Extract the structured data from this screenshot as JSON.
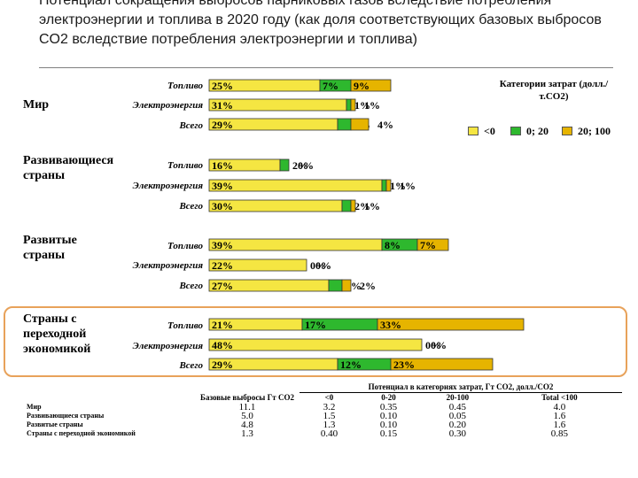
{
  "title": "Потенциал сокращения выбросов парниковых газов вследствие потребления электроэнергии и топлива в 2020 году (как доля соответствующих базовых выбросов CO2 вследствие потребления электроэнергии и топлива)",
  "regions": [
    {
      "name": "Мир",
      "rows": [
        "Топливо",
        "Электроэнергия",
        "Всего"
      ]
    },
    {
      "name": "Развивающиеся страны",
      "rows": [
        "Топливо",
        "Электроэнергия",
        "Всего"
      ]
    },
    {
      "name": "Развитые страны",
      "rows": [
        "Топливо",
        "Электроэнергия",
        "Всего"
      ]
    },
    {
      "name": "Страны с переходной экономикой",
      "rows": [
        "Топливо",
        "Электроэнергия",
        "Всего"
      ]
    }
  ],
  "legend": {
    "title": "Категории затрат (долл./т.CO2)",
    "items": [
      {
        "label": "<0",
        "color": "#f5e642"
      },
      {
        "label": "0; 20",
        "color": "#2eb82e"
      },
      {
        "label": "20; 100",
        "color": "#e6b400"
      }
    ]
  },
  "chart_data": {
    "type": "bar",
    "stacked": true,
    "orientation": "horizontal",
    "series_names": [
      "<0",
      "0; 20",
      "20; 100"
    ],
    "colors": {
      "<0": "#f5e642",
      "0; 20": "#2eb82e",
      "20; 100": "#e6b400"
    },
    "rows": [
      {
        "region": "Мир",
        "label": "Топливо",
        "values": [
          25,
          7,
          9
        ],
        "labels": [
          "25%",
          "7%",
          "9%"
        ]
      },
      {
        "region": "Мир",
        "label": "Электроэнергия",
        "values": [
          31,
          1,
          1
        ],
        "labels": [
          "31%",
          "1%",
          "1%"
        ]
      },
      {
        "region": "Мир",
        "label": "Всего",
        "values": [
          29,
          3,
          4
        ],
        "labels": [
          "29%",
          "3%",
          "4%"
        ]
      },
      {
        "region": "Развивающиеся страны",
        "label": "Топливо",
        "values": [
          16,
          2,
          0
        ],
        "labels": [
          "16%",
          "2%",
          "0%"
        ]
      },
      {
        "region": "Развивающиеся страны",
        "label": "Электроэнергия",
        "values": [
          39,
          1,
          1
        ],
        "labels": [
          "39%",
          "1%",
          "1%"
        ]
      },
      {
        "region": "Развивающиеся страны",
        "label": "Всего",
        "values": [
          30,
          2,
          1
        ],
        "labels": [
          "30%",
          "2%",
          "1%"
        ]
      },
      {
        "region": "Развитые страны",
        "label": "Топливо",
        "values": [
          39,
          8,
          7
        ],
        "labels": [
          "39%",
          "8%",
          "7%"
        ]
      },
      {
        "region": "Развитые страны",
        "label": "Электроэнергия",
        "values": [
          22,
          0,
          0
        ],
        "labels": [
          "22%",
          "0%",
          "0%"
        ]
      },
      {
        "region": "Развитые страны",
        "label": "Всего",
        "values": [
          27,
          3,
          2
        ],
        "labels": [
          "27%",
          "3%",
          "2%"
        ]
      },
      {
        "region": "Страны с переходной экономикой",
        "label": "Топливо",
        "values": [
          21,
          17,
          33
        ],
        "labels": [
          "21%",
          "17%",
          "33%"
        ]
      },
      {
        "region": "Страны с переходной экономикой",
        "label": "Электроэнергия",
        "values": [
          48,
          0,
          0
        ],
        "labels": [
          "48%",
          "0%",
          "0%"
        ]
      },
      {
        "region": "Страны с переходной экономикой",
        "label": "Всего",
        "values": [
          29,
          12,
          23
        ],
        "labels": [
          "29%",
          "12%",
          "23%"
        ]
      }
    ],
    "xlim": [
      0,
      85
    ]
  },
  "table": {
    "baseline_header": "Базовые выбросы Гт CO2",
    "potential_header": "Потенциал в категориях затрат, Гт CO2, долл./CO2",
    "columns": [
      "<0",
      "0-20",
      "20-100",
      "Total <100"
    ],
    "rows": [
      {
        "label": "Мир",
        "baseline": "11.1",
        "values": [
          "3.2",
          "0.35",
          "0.45",
          "4.0"
        ]
      },
      {
        "label": "Развивающиеся страны",
        "baseline": "5.0",
        "values": [
          "1.5",
          "0.10",
          "0.05",
          "1.6"
        ]
      },
      {
        "label": "Развитые страны",
        "baseline": "4.8",
        "values": [
          "1.3",
          "0.10",
          "0.20",
          "1.6"
        ]
      },
      {
        "label": "Страны с переходной экономикой",
        "baseline": "1.3",
        "values": [
          "0.40",
          "0.15",
          "0.30",
          "0.85"
        ]
      }
    ]
  }
}
